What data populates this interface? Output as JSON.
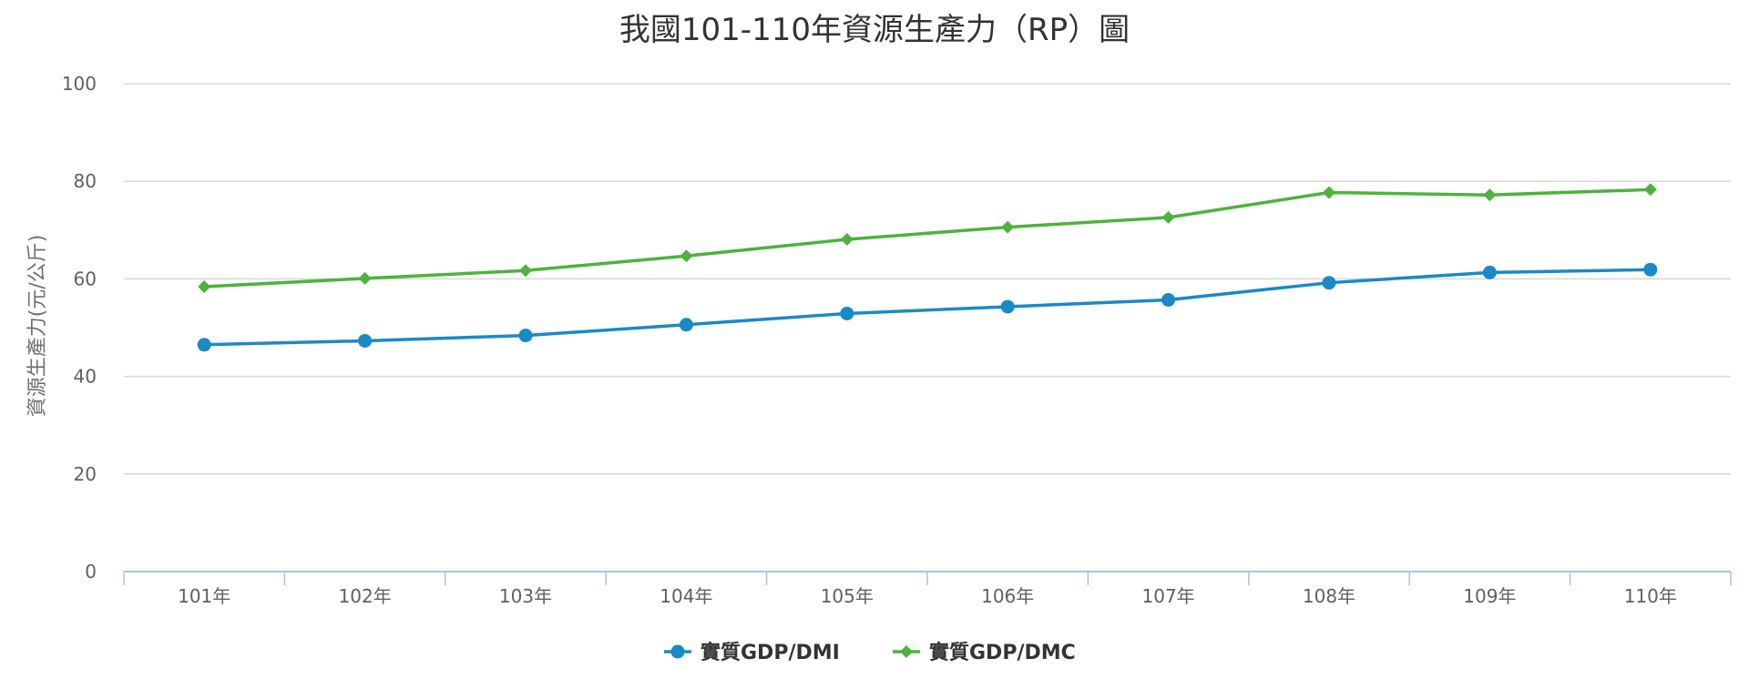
{
  "chart_data": {
    "type": "line",
    "title": "我國101-110年資源生產力（RP）圖",
    "xlabel": "",
    "ylabel": "資源生產力(元/公斤)",
    "categories": [
      "101年",
      "102年",
      "103年",
      "104年",
      "105年",
      "106年",
      "107年",
      "108年",
      "109年",
      "110年"
    ],
    "ylim": [
      0,
      100
    ],
    "yticks": [
      0,
      20,
      40,
      60,
      80,
      100
    ],
    "grid": true,
    "legend_position": "bottom-center",
    "series": [
      {
        "name": "實質GDP/DMI",
        "color": "#1a8ac6",
        "marker": "circle",
        "values": [
          46.5,
          47.3,
          48.4,
          50.6,
          52.9,
          54.3,
          55.7,
          59.2,
          61.3,
          61.9
        ]
      },
      {
        "name": "實質GDP/DMC",
        "color": "#4db33d",
        "marker": "diamond",
        "values": [
          58.4,
          60.1,
          61.7,
          64.7,
          68.1,
          70.6,
          72.6,
          77.7,
          77.2,
          78.3
        ]
      }
    ]
  },
  "colors": {
    "gridline": "#d8d8d8",
    "axis_line": "#a8c4dc",
    "tick_text": "#606060"
  }
}
